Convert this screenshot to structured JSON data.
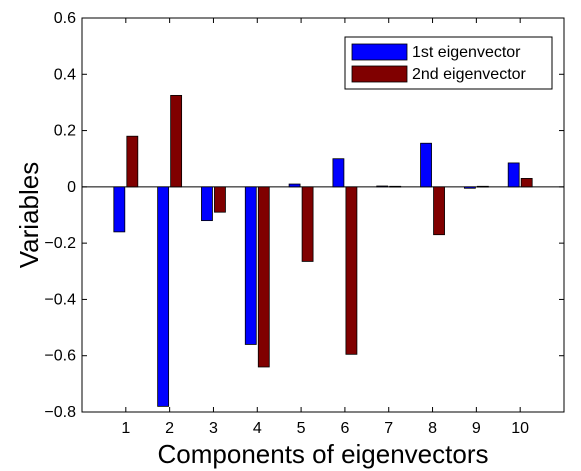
{
  "chart_data": {
    "type": "bar",
    "xlabel": "Components of eigenvectors",
    "ylabel": "Variables",
    "categories": [
      "1",
      "2",
      "3",
      "4",
      "5",
      "6",
      "7",
      "8",
      "9",
      "10"
    ],
    "ylim": [
      -0.8,
      0.6
    ],
    "yticks": [
      "−0.8",
      "−0.6",
      "−0.4",
      "−0.2",
      "0",
      "0.2",
      "0.4",
      "0.6"
    ],
    "ytick_values": [
      -0.8,
      -0.6,
      -0.4,
      -0.2,
      0,
      0.2,
      0.4,
      0.6
    ],
    "legend_position": "top-right",
    "grid": false,
    "series": [
      {
        "name": "1st eigenvector",
        "color": "#0000ff",
        "values": [
          -0.16,
          -0.78,
          -0.12,
          -0.56,
          0.01,
          0.1,
          0.003,
          0.155,
          -0.005,
          0.085
        ]
      },
      {
        "name": "2nd eigenvector",
        "color": "#800000",
        "values": [
          0.18,
          0.325,
          -0.09,
          -0.64,
          -0.265,
          -0.595,
          0.002,
          -0.17,
          0.002,
          0.03
        ]
      }
    ]
  }
}
